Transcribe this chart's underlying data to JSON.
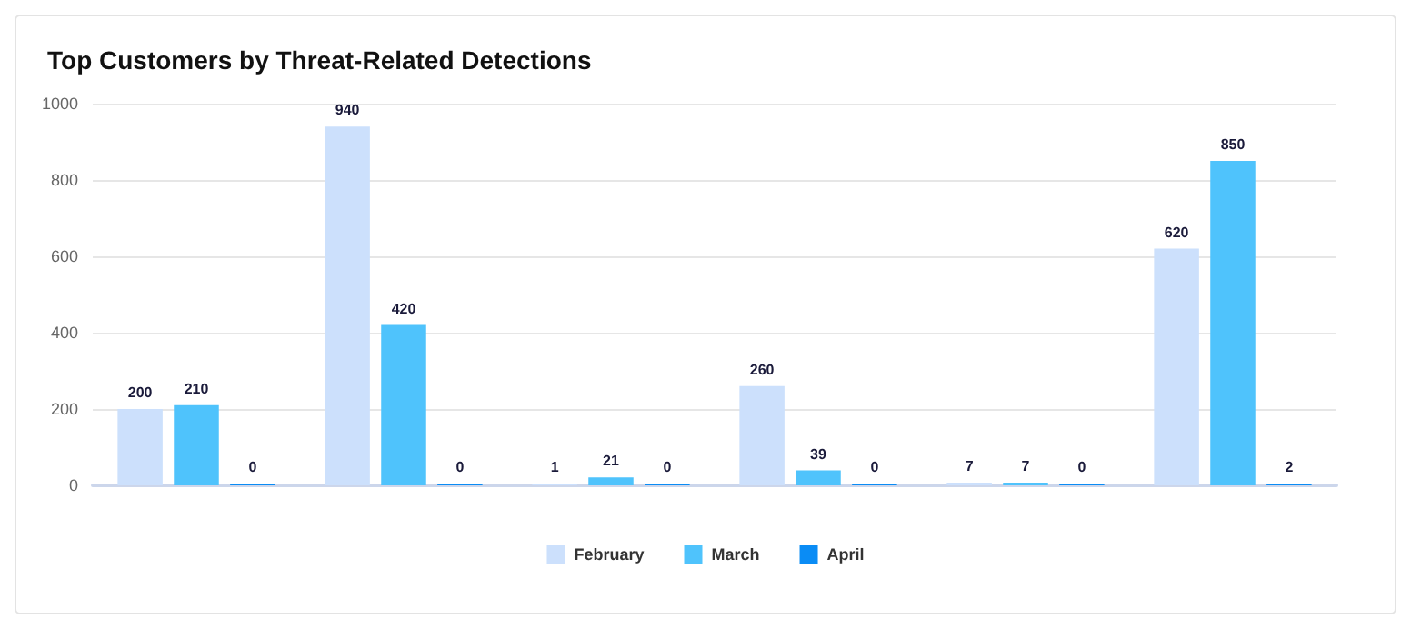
{
  "chart_data": {
    "type": "bar",
    "title": "Top Customers by Threat-Related Detections",
    "categories": [
      null,
      null,
      null,
      null,
      null,
      null
    ],
    "series": [
      {
        "name": "February",
        "color": "#cce0fc",
        "values": [
          200,
          940,
          1,
          260,
          7,
          620
        ]
      },
      {
        "name": "March",
        "color": "#4fc3fc",
        "values": [
          210,
          420,
          21,
          39,
          7,
          850
        ]
      },
      {
        "name": "April",
        "color": "#0a8cf5",
        "values": [
          0,
          0,
          0,
          0,
          0,
          2
        ]
      }
    ],
    "ylim": [
      0,
      1000
    ],
    "yticks": [
      0,
      200,
      400,
      600,
      800,
      1000
    ],
    "grid": "y",
    "legend": "bottom",
    "data_labels": true
  }
}
